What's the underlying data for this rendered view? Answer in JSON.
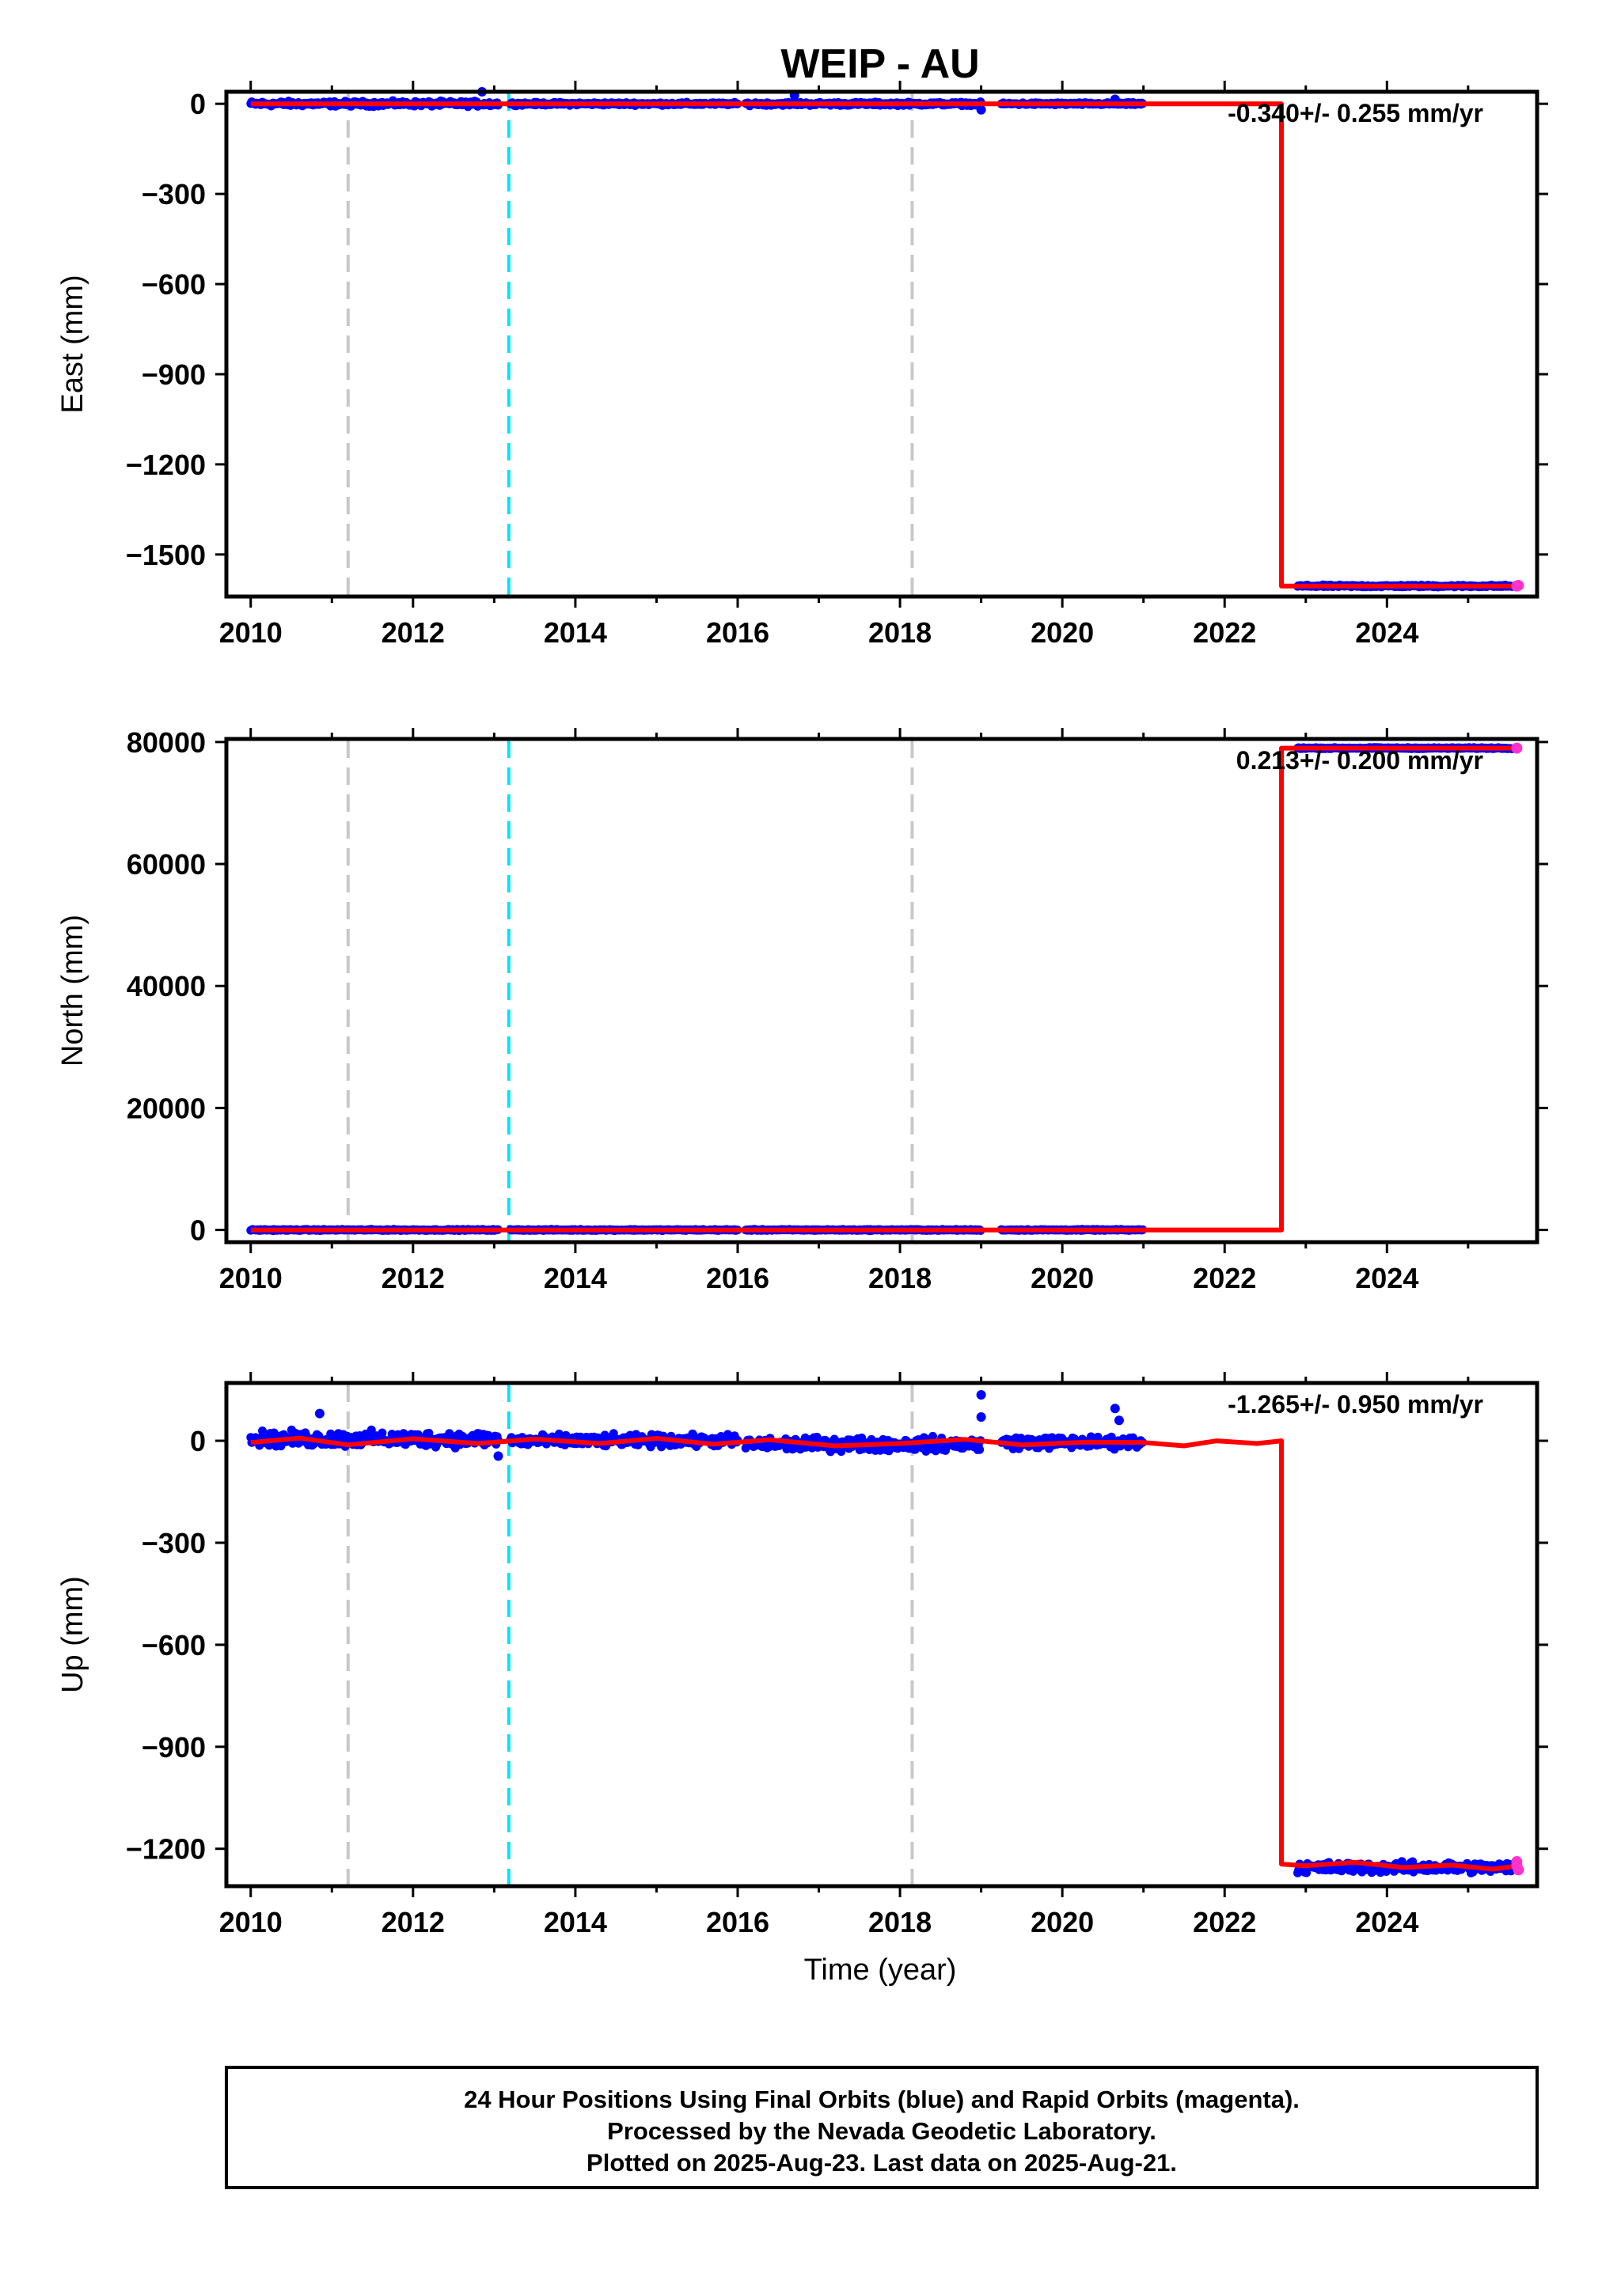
{
  "title": "WEIP - AU",
  "xlabel": "Time (year)",
  "footer": {
    "line1": "24 Hour Positions Using Final Orbits (blue) and Rapid Orbits (magenta).",
    "line2": "Processed by the Nevada Geodetic Laboratory.",
    "line3": "Plotted on 2025-Aug-23. Last data on 2025-Aug-21."
  },
  "colors": {
    "final_orbits": "#0000ff",
    "rapid_orbits": "#ff33cc",
    "model_fit": "#ff0000",
    "reference_line": "#c8c8c8",
    "antenna_change_line": "#00e5ff"
  },
  "chart_data": [
    {
      "type": "scatter",
      "panel": "east",
      "ylabel": "East (mm)",
      "rate_label": "-0.340+/- 0.255 mm/yr",
      "xlim": [
        2009.7,
        2025.85
      ],
      "ylim": [
        -1640,
        40
      ],
      "x_ticks": [
        2010,
        2012,
        2014,
        2016,
        2018,
        2020,
        2022,
        2024
      ],
      "x_tick_labels": [
        "2010",
        "2012",
        "2014",
        "2016",
        "2018",
        "2020",
        "2022",
        "2024"
      ],
      "y_ticks": [
        0,
        -300,
        -600,
        -900,
        -1200,
        -1500
      ],
      "y_tick_labels": [
        "0",
        "−300",
        "−600",
        "−900",
        "−1200",
        "−1500"
      ],
      "gray_vlines": [
        2011.2,
        2018.15
      ],
      "cyan_vlines": [
        2013.18
      ],
      "final_segments": [
        {
          "x": [
            2010.0,
            2013.05
          ],
          "y": 0,
          "spread": 12
        },
        {
          "x": [
            2013.2,
            2015.6
          ],
          "y": 0,
          "spread": 7
        },
        {
          "x": [
            2015.65,
            2016.0
          ],
          "y": 0,
          "spread": 6
        },
        {
          "x": [
            2016.1,
            2019.0
          ],
          "y": 0,
          "spread": 8
        },
        {
          "x": [
            2019.25,
            2021.0
          ],
          "y": 0,
          "spread": 6
        },
        {
          "x": [
            2022.9,
            2025.55
          ],
          "y": -1605,
          "spread": 5
        }
      ],
      "outliers": [
        [
          2012.85,
          40
        ],
        [
          2016.7,
          28
        ],
        [
          2019.0,
          -20
        ],
        [
          2020.65,
          15
        ]
      ],
      "rapid_points": [
        [
          2025.6,
          -1605
        ],
        [
          2025.62,
          -1603
        ]
      ],
      "model": [
        [
          2010.0,
          0
        ],
        [
          2022.7,
          0
        ],
        [
          2022.7,
          -1605
        ],
        [
          2025.62,
          -1605
        ]
      ]
    },
    {
      "type": "scatter",
      "panel": "north",
      "ylabel": "North (mm)",
      "rate_label": "0.213+/- 0.200 mm/yr",
      "xlim": [
        2009.7,
        2025.85
      ],
      "ylim": [
        -2000,
        80500
      ],
      "x_ticks": [
        2010,
        2012,
        2014,
        2016,
        2018,
        2020,
        2022,
        2024
      ],
      "x_tick_labels": [
        "2010",
        "2012",
        "2014",
        "2016",
        "2018",
        "2020",
        "2022",
        "2024"
      ],
      "y_ticks": [
        0,
        20000,
        40000,
        60000,
        80000
      ],
      "y_tick_labels": [
        "0",
        "20000",
        "40000",
        "60000",
        "80000"
      ],
      "gray_vlines": [
        2011.2,
        2018.15
      ],
      "cyan_vlines": [
        2013.18
      ],
      "final_segments": [
        {
          "x": [
            2010.0,
            2013.05
          ],
          "y": 0,
          "spread": 150
        },
        {
          "x": [
            2013.2,
            2015.6
          ],
          "y": 0,
          "spread": 150
        },
        {
          "x": [
            2015.65,
            2016.0
          ],
          "y": 0,
          "spread": 150
        },
        {
          "x": [
            2016.1,
            2019.0
          ],
          "y": 0,
          "spread": 150
        },
        {
          "x": [
            2019.25,
            2021.0
          ],
          "y": 0,
          "spread": 150
        },
        {
          "x": [
            2022.9,
            2025.55
          ],
          "y": 79000,
          "spread": 150
        }
      ],
      "outliers": [],
      "rapid_points": [
        [
          2025.6,
          79000
        ]
      ],
      "model": [
        [
          2010.0,
          0
        ],
        [
          2022.7,
          0
        ],
        [
          2022.7,
          79000
        ],
        [
          2025.62,
          79000
        ]
      ]
    },
    {
      "type": "scatter",
      "panel": "up",
      "ylabel": "Up (mm)",
      "rate_label": "-1.265+/- 0.950 mm/yr",
      "xlim": [
        2009.7,
        2025.85
      ],
      "ylim": [
        -1310,
        170
      ],
      "x_ticks": [
        2010,
        2012,
        2014,
        2016,
        2018,
        2020,
        2022,
        2024
      ],
      "x_tick_labels": [
        "2010",
        "2012",
        "2014",
        "2016",
        "2018",
        "2020",
        "2022",
        "2024"
      ],
      "y_ticks": [
        0,
        -300,
        -600,
        -900,
        -1200
      ],
      "y_tick_labels": [
        "0",
        "−300",
        "−600",
        "−900",
        "−1200"
      ],
      "gray_vlines": [
        2011.2,
        2018.15
      ],
      "cyan_vlines": [
        2013.18
      ],
      "final_segments": [
        {
          "x": [
            2010.0,
            2013.05
          ],
          "y": 5,
          "spread": 32
        },
        {
          "x": [
            2013.2,
            2015.6
          ],
          "y": 0,
          "spread": 25
        },
        {
          "x": [
            2015.65,
            2016.0
          ],
          "y": 0,
          "spread": 25
        },
        {
          "x": [
            2016.1,
            2019.0
          ],
          "y": -10,
          "spread": 28
        },
        {
          "x": [
            2019.25,
            2021.0
          ],
          "y": -5,
          "spread": 25
        },
        {
          "x": [
            2022.9,
            2025.55
          ],
          "y": -1255,
          "spread": 22
        }
      ],
      "outliers": [
        [
          2010.85,
          80
        ],
        [
          2019.0,
          135
        ],
        [
          2019.0,
          70
        ],
        [
          2020.65,
          95
        ],
        [
          2020.7,
          60
        ],
        [
          2013.05,
          -45
        ]
      ],
      "rapid_points": [
        [
          2025.6,
          -1250
        ],
        [
          2025.62,
          -1262
        ],
        [
          2025.6,
          -1238
        ]
      ],
      "model": [
        [
          2010.0,
          -5
        ],
        [
          2010.6,
          8
        ],
        [
          2011.2,
          -12
        ],
        [
          2012.0,
          6
        ],
        [
          2012.8,
          -8
        ],
        [
          2013.5,
          5
        ],
        [
          2014.3,
          -8
        ],
        [
          2015.0,
          7
        ],
        [
          2015.7,
          -10
        ],
        [
          2016.4,
          3
        ],
        [
          2017.2,
          -15
        ],
        [
          2018.0,
          -8
        ],
        [
          2018.8,
          4
        ],
        [
          2019.5,
          -12
        ],
        [
          2020.3,
          -4
        ],
        [
          2021.0,
          -5
        ],
        [
          2021.5,
          -15
        ],
        [
          2021.9,
          0
        ],
        [
          2022.4,
          -8
        ],
        [
          2022.7,
          0
        ],
        [
          2022.7,
          -1245
        ],
        [
          2023.0,
          -1250
        ],
        [
          2023.6,
          -1240
        ],
        [
          2024.2,
          -1255
        ],
        [
          2024.8,
          -1248
        ],
        [
          2025.3,
          -1260
        ],
        [
          2025.62,
          -1250
        ]
      ]
    }
  ]
}
